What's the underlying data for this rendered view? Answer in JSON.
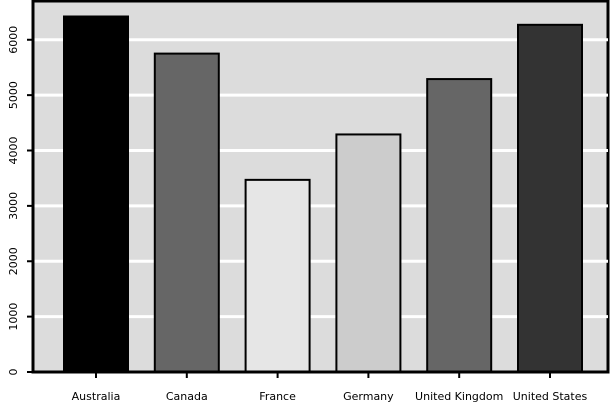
{
  "chart_data": {
    "type": "bar",
    "title": "",
    "xlabel": "",
    "ylabel": "",
    "categories": [
      "Australia",
      "Canada",
      "France",
      "Germany",
      "United Kingdom",
      "United States"
    ],
    "values": [
      6420,
      5750,
      3470,
      4290,
      5290,
      6270
    ],
    "colors": [
      "#000000",
      "#666666",
      "#e6e6e6",
      "#cccccc",
      "#666666",
      "#333333"
    ],
    "yticks": [
      0,
      1000,
      2000,
      3000,
      4000,
      5000,
      6000
    ],
    "ylim": [
      0,
      6700
    ],
    "grid": true,
    "legend": "none",
    "style": {
      "panel_background": "#dcdcdc",
      "grid_color": "#ffffff",
      "bar_outline": "#000000"
    }
  }
}
